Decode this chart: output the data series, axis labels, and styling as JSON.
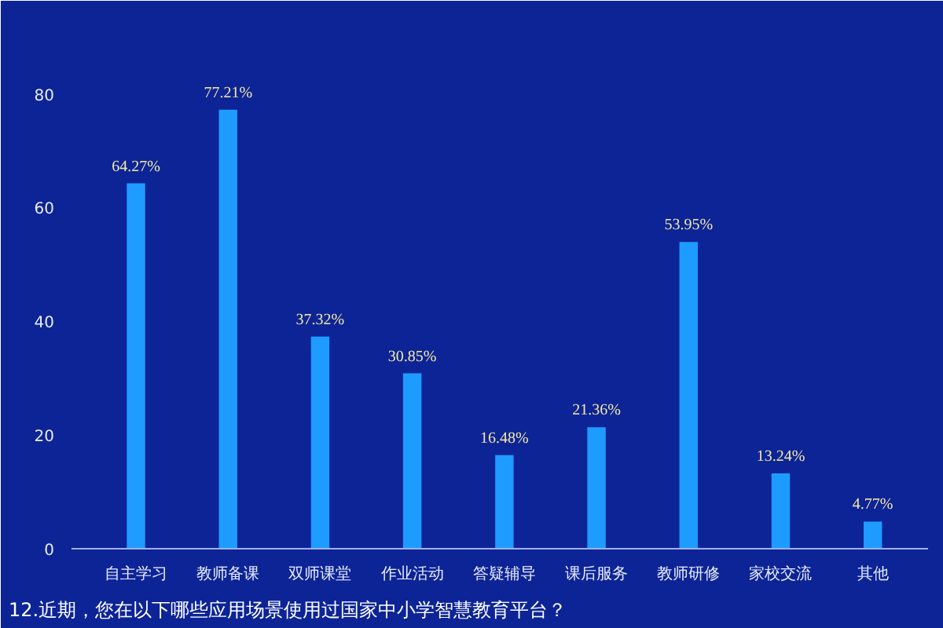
{
  "chart_data": {
    "type": "bar",
    "title": "12.近期，您在以下哪些应用场景使用过国家中小学智慧教育平台？",
    "categories": [
      "自主学习",
      "教师备课",
      "双师课堂",
      "作业活动",
      "答疑辅导",
      "课后服务",
      "教师研修",
      "家校交流",
      "其他"
    ],
    "values": [
      64.27,
      77.21,
      37.32,
      30.85,
      16.48,
      21.36,
      53.95,
      13.24,
      4.77
    ],
    "value_labels": [
      "64.27%",
      "77.21%",
      "37.32%",
      "30.85%",
      "16.48%",
      "21.36%",
      "53.95%",
      "13.24%",
      "4.77%"
    ],
    "color": "#1e9bff",
    "ylim": [
      0,
      95
    ],
    "yticks": [
      0,
      20,
      40,
      60,
      80
    ],
    "grid": false
  }
}
